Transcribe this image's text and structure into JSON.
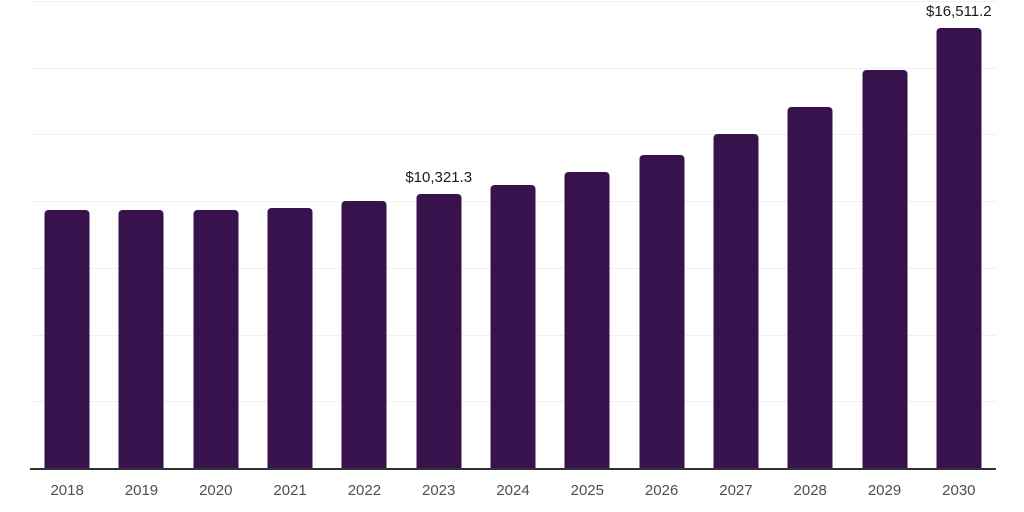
{
  "chart_data": {
    "type": "bar",
    "title": "",
    "xlabel": "",
    "ylabel": "",
    "categories": [
      "2018",
      "2019",
      "2020",
      "2021",
      "2022",
      "2023",
      "2024",
      "2025",
      "2026",
      "2027",
      "2028",
      "2029",
      "2030"
    ],
    "values": [
      9690,
      9715,
      9705,
      9790,
      10030,
      10321.3,
      10640,
      11125,
      11760,
      12545,
      13570,
      14940,
      16511.2
    ],
    "data_labels": {
      "2023": "$10,321.3",
      "2030": "$16,511.2"
    },
    "ylim": [
      0,
      17500
    ],
    "gridline_step": 2500,
    "grid": true,
    "legend": false,
    "bar_color": "#38124c",
    "gridline_color": "#f0f0f0",
    "axis_line_color": "#333333",
    "tick_label_color": "#4f4f4f",
    "data_label_color": "#1a1a1a"
  }
}
